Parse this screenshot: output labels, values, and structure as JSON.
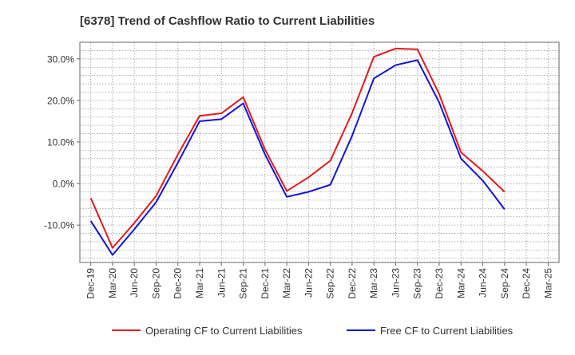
{
  "chart_data": {
    "type": "line",
    "title": "[6378]  Trend of Cashflow Ratio to Current Liabilities",
    "xlabel": "",
    "ylabel": "",
    "x": [
      "Dec-19",
      "Mar-20",
      "Jun-20",
      "Sep-20",
      "Dec-20",
      "Mar-21",
      "Jun-21",
      "Sep-21",
      "Dec-21",
      "Mar-22",
      "Jun-22",
      "Sep-22",
      "Dec-22",
      "Mar-23",
      "Jun-23",
      "Sep-23",
      "Dec-23",
      "Mar-24",
      "Jun-24",
      "Sep-24",
      "Dec-24",
      "Mar-25"
    ],
    "x_tick_labels": [
      "Dec-19",
      "Mar-20",
      "Jun-20",
      "Sep-20",
      "Dec-20",
      "Mar-21",
      "Jun-21",
      "Sep-21",
      "Dec-21",
      "Mar-22",
      "Jun-22",
      "Sep-22",
      "Dec-22",
      "Mar-23",
      "Jun-23",
      "Sep-23",
      "Dec-23",
      "Mar-24",
      "Jun-24",
      "Sep-24",
      "Dec-24",
      "Mar-25"
    ],
    "y_ticks": [
      30,
      20,
      10,
      0,
      -10
    ],
    "y_tick_labels": [
      "30.0%",
      "20.0%",
      "10.0%",
      "0.0%",
      "-10.0%"
    ],
    "ylim": [
      -19,
      34
    ],
    "grid": true,
    "legend_position": "bottom",
    "series": [
      {
        "name": "Operating CF to Current Liabilities",
        "color": "#e31a1c",
        "values": [
          -3.5,
          -15.5,
          -9.5,
          -3.0,
          7.0,
          16.3,
          16.9,
          20.8,
          8.2,
          -1.8,
          1.5,
          5.5,
          17.0,
          30.5,
          32.5,
          32.3,
          21.5,
          7.5,
          3.0,
          -2.0,
          null,
          null
        ]
      },
      {
        "name": "Free CF to Current Liabilities",
        "color": "#1414d6",
        "values": [
          -9.0,
          -17.2,
          -11.0,
          -4.5,
          5.0,
          15.0,
          15.5,
          19.3,
          7.0,
          -3.2,
          -2.0,
          -0.3,
          11.5,
          25.3,
          28.5,
          29.7,
          19.5,
          6.0,
          0.7,
          -6.2,
          null,
          null
        ]
      }
    ]
  }
}
